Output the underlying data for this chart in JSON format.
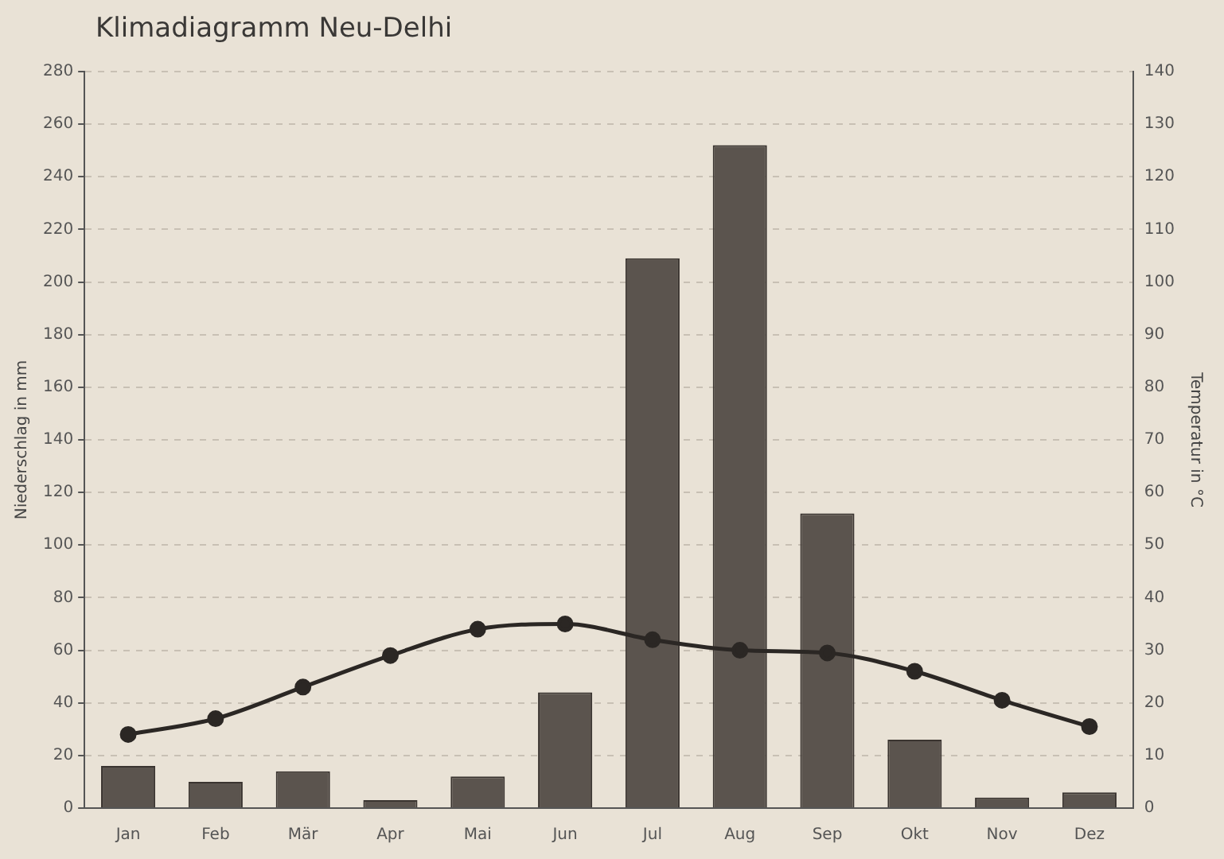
{
  "chart_data": {
    "type": "bar",
    "title": "Klimadiagramm Neu-Delhi",
    "categories": [
      "Jan",
      "Feb",
      "Mär",
      "Apr",
      "Mai",
      "Jun",
      "Jul",
      "Aug",
      "Sep",
      "Okt",
      "Nov",
      "Dez"
    ],
    "series": [
      {
        "color": "#5b544e",
        "values": [
          16,
          10,
          14,
          3,
          12,
          44,
          209,
          252,
          112,
          26,
          4,
          6
        ]
      },
      {
        "type": "line",
        "axis": "y2",
        "color": "#2b2724",
        "marker": "circle",
        "values": [
          14,
          17,
          23,
          29,
          34,
          35,
          32,
          30,
          29.5,
          26,
          20.5,
          15.5
        ]
      }
    ],
    "ylabel": "Niederschlag in mm",
    "y2label": "Temperatur in °C",
    "ylim": [
      0,
      280
    ],
    "yticks": [
      0,
      20,
      40,
      60,
      80,
      100,
      120,
      140,
      160,
      180,
      200,
      220,
      240,
      260,
      280
    ],
    "y2lim": [
      0,
      140
    ],
    "y2ticks": [
      0,
      10,
      20,
      30,
      40,
      50,
      60,
      70,
      80,
      90,
      100,
      110,
      120,
      130,
      140
    ],
    "grid": "y",
    "legend": false
  }
}
